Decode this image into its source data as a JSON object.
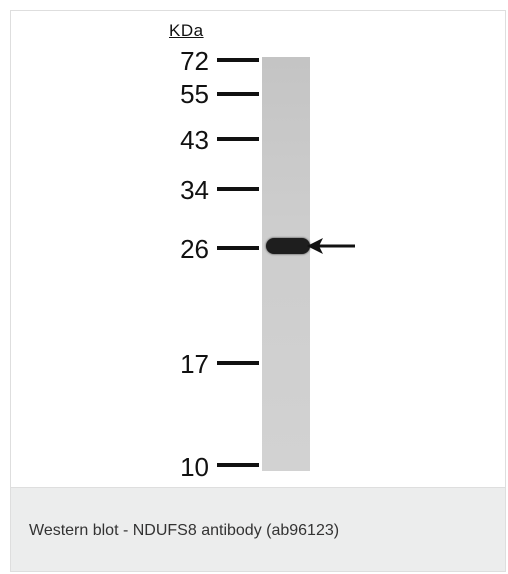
{
  "blot": {
    "unit_label": "KDa",
    "markers": [
      {
        "label": "72",
        "kda": 72
      },
      {
        "label": "55",
        "kda": 55
      },
      {
        "label": "43",
        "kda": 43
      },
      {
        "label": "34",
        "kda": 34
      },
      {
        "label": "26",
        "kda": 26
      },
      {
        "label": "17",
        "kda": 17
      },
      {
        "label": "10",
        "kda": 10
      }
    ],
    "band": {
      "kda": 26
    }
  },
  "caption": "Western blot - NDUFS8 antibody (ab96123)",
  "colors": {
    "caption_bar": "#eceded",
    "lane": "#cccccc",
    "band": "#1e1e1e",
    "ink": "#111111"
  },
  "icons": {
    "band_pointer": "arrow-left-icon"
  }
}
